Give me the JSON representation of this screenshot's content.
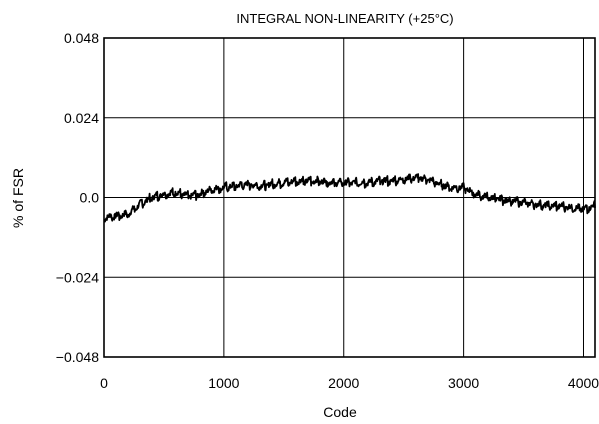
{
  "chart_data": {
    "type": "line",
    "title": "INTEGRAL NON-LINEARITY (+25°C)",
    "xlabel": "Code",
    "ylabel": "% of FSR",
    "xlim": [
      0,
      4096
    ],
    "ylim": [
      -0.048,
      0.048
    ],
    "x_ticks": [
      0,
      1000,
      2000,
      3000,
      4000
    ],
    "x_tick_labels": [
      "0",
      "1000",
      "2000",
      "3000",
      "4000"
    ],
    "y_ticks": [
      0.048,
      0.024,
      0.0,
      -0.024,
      -0.048
    ],
    "y_tick_labels": [
      "0.048",
      "0.024",
      "0.0",
      "−0.024",
      "−0.048"
    ],
    "grid": true,
    "legend": "none",
    "series": [
      {
        "line_color": "#000000",
        "x": [
          0,
          100,
          200,
          300,
          400,
          500,
          600,
          700,
          800,
          900,
          1000,
          1100,
          1200,
          1300,
          1400,
          1500,
          1600,
          1700,
          1800,
          1900,
          2000,
          2100,
          2200,
          2300,
          2400,
          2500,
          2600,
          2700,
          2800,
          2900,
          3000,
          3100,
          3200,
          3300,
          3400,
          3500,
          3600,
          3700,
          3800,
          3900,
          4000,
          4096
        ],
        "y": [
          -0.006,
          -0.0055,
          -0.005,
          -0.002,
          0.0,
          0.001,
          0.0015,
          0.0005,
          0.001,
          0.0025,
          0.003,
          0.0035,
          0.004,
          0.0035,
          0.004,
          0.0045,
          0.005,
          0.005,
          0.005,
          0.0045,
          0.0045,
          0.0045,
          0.0045,
          0.005,
          0.005,
          0.0055,
          0.006,
          0.0055,
          0.004,
          0.003,
          0.003,
          0.001,
          0.0,
          -0.0005,
          -0.001,
          -0.0015,
          -0.002,
          -0.0025,
          -0.0025,
          -0.003,
          -0.0035,
          -0.0025
        ]
      }
    ]
  }
}
